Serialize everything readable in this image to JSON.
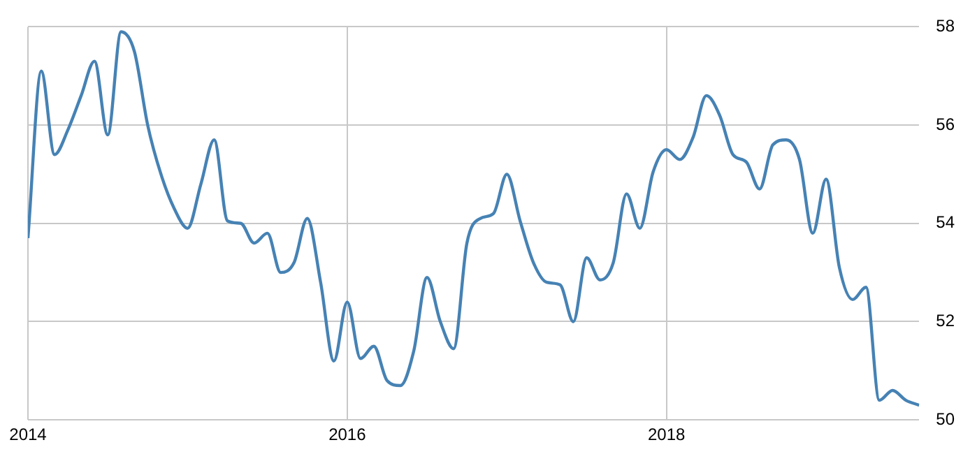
{
  "chart_data": {
    "type": "line",
    "x": [
      "2014-01",
      "2014-02",
      "2014-03",
      "2014-04",
      "2014-05",
      "2014-06",
      "2014-07",
      "2014-08",
      "2014-09",
      "2014-10",
      "2014-11",
      "2014-12",
      "2015-01",
      "2015-02",
      "2015-03",
      "2015-04",
      "2015-05",
      "2015-06",
      "2015-07",
      "2015-08",
      "2015-09",
      "2015-10",
      "2015-11",
      "2015-12",
      "2016-01",
      "2016-02",
      "2016-03",
      "2016-04",
      "2016-05",
      "2016-06",
      "2016-07",
      "2016-08",
      "2016-09",
      "2016-10",
      "2016-11",
      "2016-12",
      "2017-01",
      "2017-02",
      "2017-03",
      "2017-04",
      "2017-05",
      "2017-06",
      "2017-07",
      "2017-08",
      "2017-09",
      "2017-10",
      "2017-11",
      "2017-12",
      "2018-01",
      "2018-02",
      "2018-03",
      "2018-04",
      "2018-05",
      "2018-06",
      "2018-07",
      "2018-08",
      "2018-09",
      "2018-10",
      "2018-11",
      "2018-12",
      "2019-01",
      "2019-02",
      "2019-03",
      "2019-04",
      "2019-05",
      "2019-06",
      "2019-07",
      "2019-08"
    ],
    "series": [
      {
        "color": "#4682b4",
        "values": [
          53.7,
          57.1,
          55.4,
          55.9,
          56.6,
          57.3,
          55.8,
          57.9,
          57.5,
          56.0,
          55.0,
          54.3,
          53.9,
          54.8,
          55.7,
          54.05,
          54.0,
          53.6,
          53.8,
          53.0,
          53.2,
          54.1,
          52.8,
          51.2,
          52.4,
          51.25,
          51.5,
          50.8,
          50.7,
          51.4,
          52.9,
          52.0,
          51.45,
          53.6,
          54.1,
          54.2,
          55.0,
          54.05,
          53.2,
          52.8,
          52.75,
          52.0,
          53.3,
          52.85,
          53.2,
          54.6,
          53.9,
          55.05,
          55.5,
          55.3,
          55.75,
          56.6,
          56.2,
          55.4,
          55.25,
          54.7,
          55.6,
          55.7,
          55.3,
          53.8,
          54.9,
          53.1,
          52.45,
          52.7,
          50.4,
          50.6,
          50.4,
          50.3
        ]
      }
    ],
    "xlim": [
      "2014-01",
      "2019-08"
    ],
    "xticks": [
      "2014",
      "2016",
      "2018"
    ],
    "ylim": [
      50,
      58
    ],
    "yticks": [
      50,
      52,
      54,
      56,
      58
    ],
    "grid": true,
    "legend": false,
    "marker": "none",
    "line_style": "solid"
  }
}
